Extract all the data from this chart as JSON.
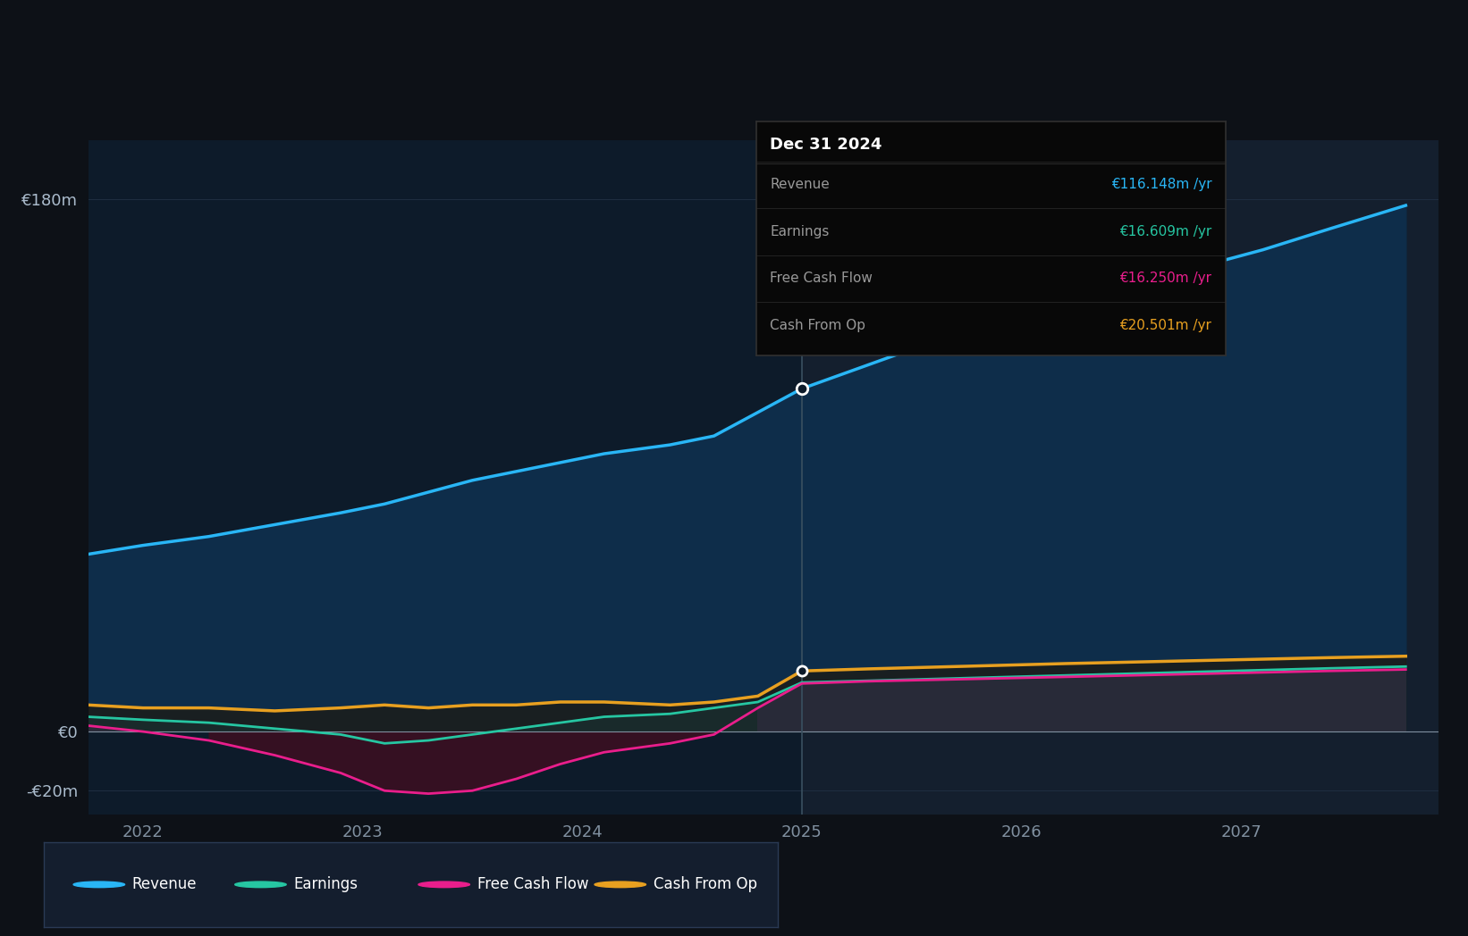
{
  "bg_color": "#0d1117",
  "plot_bg_color": "#0d1b2a",
  "plot_bg_future": "#111e2e",
  "grid_color": "#1e2d40",
  "divider_x": 2025.0,
  "x_min": 2021.75,
  "x_max": 2027.9,
  "y_min": -28,
  "y_max": 200,
  "yticks": [
    -20,
    0,
    180
  ],
  "ytick_labels": [
    "-€20m",
    "€0",
    "€180m"
  ],
  "xticks": [
    2022,
    2023,
    2024,
    2025,
    2026,
    2027
  ],
  "revenue_color": "#29b6f6",
  "earnings_color": "#26c6a2",
  "fcf_color": "#e91e8c",
  "cashop_color": "#e8a020",
  "fill_revenue_color": "#0e2d4a",
  "fill_earnings_color": "#163030",
  "fill_fcf_color": "#3a0f22",
  "fill_cashop_color": "#2a2010",
  "tooltip_bg": "#080808",
  "tooltip_border": "#2a2a2a",
  "tooltip_title": "Dec 31 2024",
  "tooltip_items": [
    {
      "label": "Revenue",
      "value": "€116.148m /yr",
      "color": "#29b6f6"
    },
    {
      "label": "Earnings",
      "value": "€16.609m /yr",
      "color": "#26c6a2"
    },
    {
      "label": "Free Cash Flow",
      "value": "€16.250m /yr",
      "color": "#e91e8c"
    },
    {
      "label": "Cash From Op",
      "value": "€20.501m /yr",
      "color": "#e8a020"
    }
  ],
  "legend_items": [
    {
      "label": "Revenue",
      "color": "#29b6f6"
    },
    {
      "label": "Earnings",
      "color": "#26c6a2"
    },
    {
      "label": "Free Cash Flow",
      "color": "#e91e8c"
    },
    {
      "label": "Cash From Op",
      "color": "#e8a020"
    }
  ],
  "revenue_x": [
    2021.75,
    2022.0,
    2022.3,
    2022.6,
    2022.9,
    2023.1,
    2023.3,
    2023.5,
    2023.7,
    2023.9,
    2024.1,
    2024.4,
    2024.6,
    2024.8,
    2025.0,
    2025.3,
    2025.6,
    2025.9,
    2026.2,
    2026.5,
    2026.8,
    2027.1,
    2027.4,
    2027.75
  ],
  "revenue_y": [
    60,
    63,
    66,
    70,
    74,
    77,
    81,
    85,
    88,
    91,
    94,
    97,
    100,
    108,
    116,
    124,
    132,
    138,
    145,
    151,
    157,
    163,
    170,
    178
  ],
  "earnings_x": [
    2021.75,
    2022.0,
    2022.3,
    2022.6,
    2022.9,
    2023.1,
    2023.3,
    2023.5,
    2023.7,
    2023.9,
    2024.1,
    2024.4,
    2024.6,
    2024.8,
    2025.0,
    2025.3,
    2025.6,
    2025.9,
    2026.2,
    2026.5,
    2026.8,
    2027.1,
    2027.4,
    2027.75
  ],
  "earnings_y": [
    5,
    4,
    3,
    1,
    -1,
    -4,
    -3,
    -1,
    1,
    3,
    5,
    6,
    8,
    10,
    16.6,
    17.2,
    17.8,
    18.4,
    19.0,
    19.6,
    20.2,
    20.8,
    21.4,
    22.0
  ],
  "fcf_x": [
    2021.75,
    2022.0,
    2022.3,
    2022.6,
    2022.9,
    2023.1,
    2023.3,
    2023.5,
    2023.7,
    2023.9,
    2024.1,
    2024.4,
    2024.6,
    2024.8,
    2025.0,
    2025.3,
    2025.6,
    2025.9,
    2026.2,
    2026.5,
    2026.8,
    2027.1,
    2027.4,
    2027.75
  ],
  "fcf_y": [
    2,
    0,
    -3,
    -8,
    -14,
    -20,
    -21,
    -20,
    -16,
    -11,
    -7,
    -4,
    -1,
    8,
    16.25,
    17.0,
    17.5,
    18.0,
    18.5,
    19.0,
    19.5,
    20.0,
    20.5,
    21.0
  ],
  "cashop_x": [
    2021.75,
    2022.0,
    2022.3,
    2022.6,
    2022.9,
    2023.1,
    2023.3,
    2023.5,
    2023.7,
    2023.9,
    2024.1,
    2024.4,
    2024.6,
    2024.8,
    2025.0,
    2025.3,
    2025.6,
    2025.9,
    2026.2,
    2026.5,
    2026.8,
    2027.1,
    2027.4,
    2027.75
  ],
  "cashop_y": [
    9,
    8,
    8,
    7,
    8,
    9,
    8,
    9,
    9,
    10,
    10,
    9,
    10,
    12,
    20.5,
    21.2,
    21.8,
    22.4,
    23.0,
    23.5,
    24.0,
    24.5,
    25.0,
    25.5
  ]
}
